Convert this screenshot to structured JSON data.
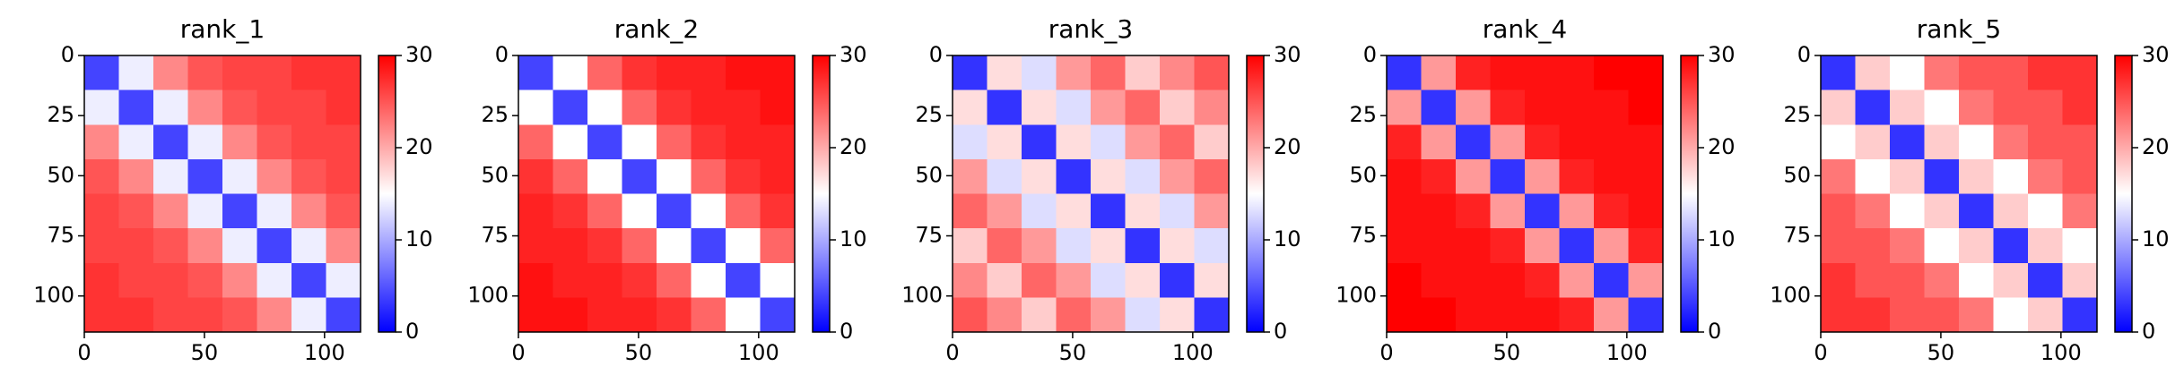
{
  "chart_data": [
    {
      "type": "heatmap",
      "title": "rank_1",
      "xlim": [
        0,
        115
      ],
      "ylim": [
        115,
        0
      ],
      "xticks": [
        0,
        50,
        100
      ],
      "yticks": [
        0,
        25,
        50,
        75,
        100
      ],
      "clim": [
        0,
        30
      ],
      "cticks": [
        0,
        10,
        20,
        30
      ],
      "colormap": [
        "#0000ff",
        "#ffffff",
        "#ff0000"
      ],
      "values": [
        [
          4,
          14,
          22,
          25,
          26,
          26,
          27,
          27
        ],
        [
          14,
          4,
          14,
          22,
          25,
          26,
          26,
          27
        ],
        [
          22,
          14,
          4,
          14,
          22,
          25,
          26,
          26
        ],
        [
          25,
          22,
          14,
          4,
          14,
          22,
          25,
          26
        ],
        [
          26,
          25,
          22,
          14,
          4,
          14,
          22,
          25
        ],
        [
          26,
          26,
          25,
          22,
          14,
          4,
          14,
          22
        ],
        [
          27,
          26,
          26,
          25,
          22,
          14,
          4,
          14
        ],
        [
          27,
          27,
          26,
          26,
          25,
          22,
          14,
          4
        ]
      ]
    },
    {
      "type": "heatmap",
      "title": "rank_2",
      "xlim": [
        0,
        115
      ],
      "ylim": [
        115,
        0
      ],
      "xticks": [
        0,
        50,
        100
      ],
      "yticks": [
        0,
        25,
        50,
        75,
        100
      ],
      "clim": [
        0,
        30
      ],
      "cticks": [
        0,
        10,
        20,
        30
      ],
      "colormap": [
        "#0000ff",
        "#ffffff",
        "#ff0000"
      ],
      "values": [
        [
          4,
          15,
          24,
          27,
          28,
          28,
          29,
          29
        ],
        [
          15,
          4,
          15,
          24,
          27,
          28,
          28,
          29
        ],
        [
          24,
          15,
          4,
          15,
          24,
          27,
          28,
          28
        ],
        [
          27,
          24,
          15,
          4,
          15,
          24,
          27,
          28
        ],
        [
          28,
          27,
          24,
          15,
          4,
          15,
          24,
          27
        ],
        [
          28,
          28,
          27,
          24,
          15,
          4,
          15,
          24
        ],
        [
          29,
          28,
          28,
          27,
          24,
          15,
          4,
          15
        ],
        [
          29,
          29,
          28,
          28,
          27,
          24,
          15,
          4
        ]
      ]
    },
    {
      "type": "heatmap",
      "title": "rank_3",
      "xlim": [
        0,
        115
      ],
      "ylim": [
        115,
        0
      ],
      "xticks": [
        0,
        50,
        100
      ],
      "yticks": [
        0,
        25,
        50,
        75,
        100
      ],
      "clim": [
        0,
        30
      ],
      "cticks": [
        0,
        10,
        20,
        30
      ],
      "colormap": [
        "#0000ff",
        "#ffffff",
        "#ff0000"
      ],
      "values": [
        [
          3,
          17,
          13,
          21,
          24,
          18,
          22,
          25
        ],
        [
          17,
          3,
          17,
          13,
          21,
          24,
          18,
          22
        ],
        [
          13,
          17,
          3,
          17,
          13,
          21,
          24,
          18
        ],
        [
          21,
          13,
          17,
          3,
          17,
          13,
          21,
          24
        ],
        [
          24,
          21,
          13,
          17,
          3,
          17,
          13,
          21
        ],
        [
          18,
          24,
          21,
          13,
          17,
          3,
          17,
          13
        ],
        [
          22,
          18,
          24,
          21,
          13,
          17,
          3,
          17
        ],
        [
          25,
          22,
          18,
          24,
          21,
          13,
          17,
          3
        ]
      ]
    },
    {
      "type": "heatmap",
      "title": "rank_4",
      "xlim": [
        0,
        115
      ],
      "ylim": [
        115,
        0
      ],
      "xticks": [
        0,
        50,
        100
      ],
      "yticks": [
        0,
        25,
        50,
        75,
        100
      ],
      "clim": [
        0,
        30
      ],
      "cticks": [
        0,
        10,
        20,
        30
      ],
      "colormap": [
        "#0000ff",
        "#ffffff",
        "#ff0000"
      ],
      "values": [
        [
          3,
          21,
          28,
          29,
          29,
          29,
          30,
          30
        ],
        [
          21,
          3,
          21,
          28,
          29,
          29,
          29,
          30
        ],
        [
          28,
          21,
          3,
          21,
          28,
          29,
          29,
          29
        ],
        [
          29,
          28,
          21,
          3,
          21,
          28,
          29,
          29
        ],
        [
          29,
          29,
          28,
          21,
          3,
          21,
          28,
          29
        ],
        [
          29,
          29,
          29,
          28,
          21,
          3,
          21,
          28
        ],
        [
          30,
          29,
          29,
          29,
          28,
          21,
          3,
          21
        ],
        [
          30,
          30,
          29,
          29,
          29,
          28,
          21,
          3
        ]
      ]
    },
    {
      "type": "heatmap",
      "title": "rank_5",
      "xlim": [
        0,
        115
      ],
      "ylim": [
        115,
        0
      ],
      "xticks": [
        0,
        50,
        100
      ],
      "yticks": [
        0,
        25,
        50,
        75,
        100
      ],
      "clim": [
        0,
        30
      ],
      "cticks": [
        0,
        10,
        20,
        30
      ],
      "colormap": [
        "#0000ff",
        "#ffffff",
        "#ff0000"
      ],
      "values": [
        [
          3,
          18,
          15,
          23,
          25,
          25,
          27,
          27
        ],
        [
          18,
          3,
          18,
          15,
          23,
          25,
          25,
          27
        ],
        [
          15,
          18,
          3,
          18,
          15,
          23,
          25,
          25
        ],
        [
          23,
          15,
          18,
          3,
          18,
          15,
          23,
          25
        ],
        [
          25,
          23,
          15,
          18,
          3,
          18,
          15,
          23
        ],
        [
          25,
          25,
          23,
          15,
          18,
          3,
          18,
          15
        ],
        [
          27,
          25,
          25,
          23,
          15,
          18,
          3,
          18
        ],
        [
          27,
          27,
          25,
          25,
          23,
          15,
          18,
          3
        ]
      ]
    }
  ]
}
